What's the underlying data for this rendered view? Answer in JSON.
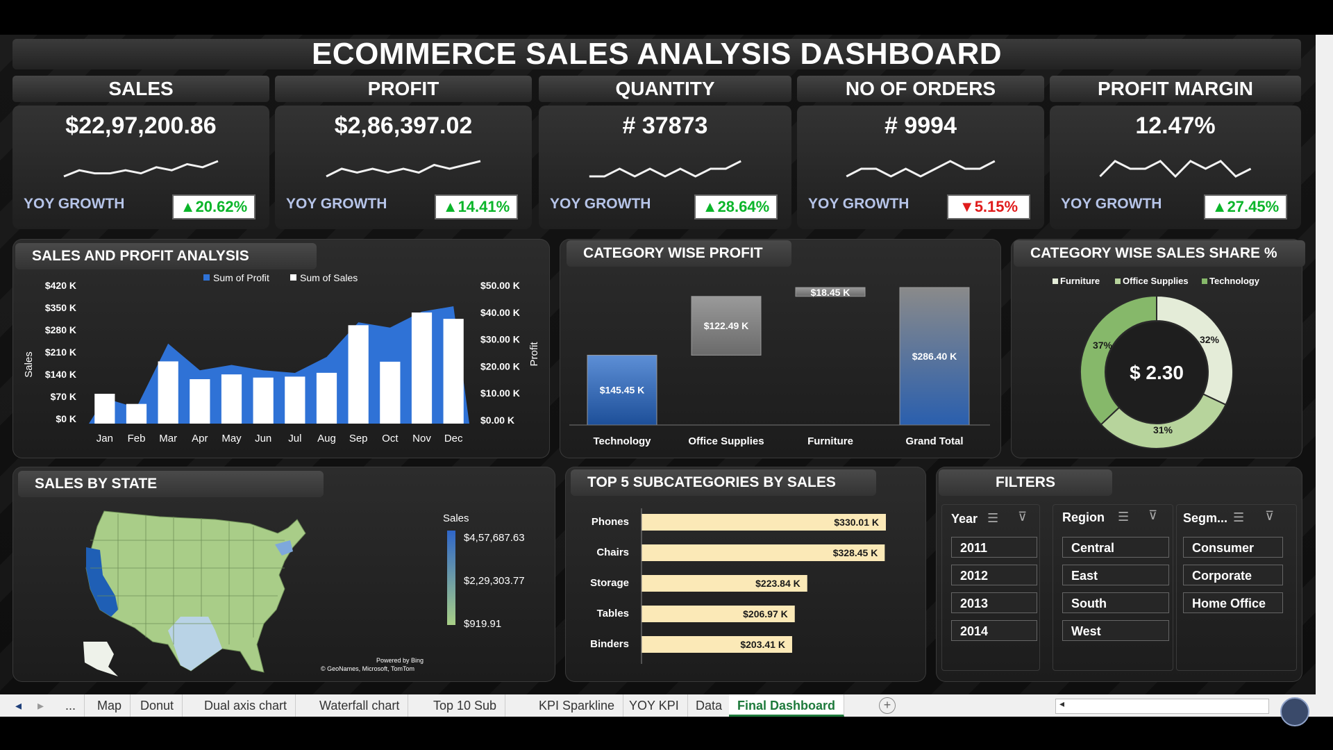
{
  "dashboard_title": "ECOMMERCE SALES ANALYSIS DASHBOARD",
  "kpis": [
    {
      "label": "SALES",
      "value": "$22,97,200.86",
      "yoy_label": "YOY GROWTH",
      "growth": "▲20.62%",
      "trend": "up",
      "spark": [
        3,
        5,
        4,
        4,
        5,
        4,
        6,
        5,
        7,
        6,
        8
      ]
    },
    {
      "label": "PROFIT",
      "value": "$2,86,397.02",
      "yoy_label": "YOY GROWTH",
      "growth": "▲14.41%",
      "trend": "up",
      "spark": [
        4,
        6,
        5,
        6,
        5,
        6,
        5,
        7,
        6,
        7,
        8
      ]
    },
    {
      "label": "QUANTITY",
      "value": "# 37873",
      "yoy_label": "YOY GROWTH",
      "growth": "▲28.64%",
      "trend": "up",
      "spark": [
        5,
        5,
        6,
        5,
        6,
        5,
        6,
        5,
        6,
        6,
        7
      ]
    },
    {
      "label": "NO OF ORDERS",
      "value": "# 9994",
      "yoy_label": "YOY GROWTH",
      "growth": "▼5.15%",
      "trend": "down",
      "spark": [
        5,
        6,
        6,
        5,
        6,
        5,
        6,
        7,
        6,
        6,
        7
      ]
    },
    {
      "label": "PROFIT MARGIN",
      "value": "12.47%",
      "yoy_label": "YOY GROWTH",
      "growth": "▲27.45%",
      "trend": "up",
      "spark": [
        5,
        7,
        6,
        6,
        7,
        5,
        7,
        6,
        7,
        5,
        6
      ]
    }
  ],
  "sales_profit": {
    "title": "SALES AND PROFIT ANALYSIS",
    "legend": [
      "Sum of Profit",
      "Sum of Sales"
    ],
    "ylabel_left": "Sales",
    "ylabel_right": "Profit",
    "left_ticks": [
      "$420 K",
      "$350 K",
      "$280 K",
      "$210 K",
      "$140 K",
      "$70 K",
      "$0 K"
    ],
    "right_ticks": [
      "$50.00 K",
      "$40.00 K",
      "$30.00 K",
      "$20.00 K",
      "$10.00 K",
      "$0.00 K"
    ],
    "colors": {
      "profit": "#2f72d6",
      "sales": "#ffffff"
    }
  },
  "category_profit": {
    "title": "CATEGORY WISE PROFIT",
    "labels": [
      "$145.45 K",
      "$122.49 K",
      "$18.45 K",
      "$286.40 K"
    ]
  },
  "category_share": {
    "title": "CATEGORY WISE SALES SHARE %",
    "legend": [
      "Furniture",
      "Office Supplies",
      "Technology"
    ],
    "center_label": "$ 2.30",
    "slice_labels": [
      "32%",
      "31%",
      "37%"
    ],
    "colors": [
      "#e4ecd8",
      "#b7d49c",
      "#86b86a"
    ]
  },
  "sales_by_state": {
    "title": "SALES BY STATE",
    "legend_title": "Sales",
    "legend_values": [
      "$4,57,687.63",
      "$2,29,303.77",
      "$919.91"
    ],
    "credit_1": "Powered by Bing",
    "credit_2": "© GeoNames, Microsoft, TomTom"
  },
  "top5": {
    "title": "TOP 5 SUBCATEGORIES BY SALES",
    "bar_color": "#fbe9b7"
  },
  "filters": {
    "title": "FILTERS",
    "year_label": "Year",
    "years": [
      "2011",
      "2012",
      "2013",
      "2014"
    ],
    "region_label": "Region",
    "regions": [
      "Central",
      "East",
      "South",
      "West"
    ],
    "segment_label": "Segm...",
    "segments": [
      "Consumer",
      "Corporate",
      "Home Office"
    ]
  },
  "sheet_tabs": [
    "...",
    "Map",
    "Donut",
    "Dual axis chart",
    "Waterfall chart",
    "Top 10 Sub",
    "KPI Sparkline",
    "YOY KPI",
    "Data",
    "Final Dashboard"
  ],
  "active_tab": "Final Dashboard",
  "chart_data": [
    {
      "type": "bar",
      "title": "SALES AND PROFIT ANALYSIS",
      "categories": [
        "Jan",
        "Feb",
        "Mar",
        "Apr",
        "May",
        "Jun",
        "Jul",
        "Aug",
        "Sep",
        "Oct",
        "Nov",
        "Dec"
      ],
      "series": [
        {
          "name": "Sum of Sales",
          "axis": "left",
          "values": [
            94,
            62,
            196,
            140,
            155,
            145,
            148,
            160,
            310,
            195,
            350,
            330
          ]
        },
        {
          "name": "Sum of Profit",
          "axis": "right",
          "values": [
            9.5,
            6,
            30,
            20,
            22,
            20,
            19,
            25,
            38,
            36,
            42,
            44
          ]
        }
      ],
      "ylim_left": [
        0,
        420
      ],
      "ylim_right": [
        0,
        50
      ]
    },
    {
      "type": "bar",
      "title": "CATEGORY WISE PROFIT",
      "categories": [
        "Technology",
        "Office Supplies",
        "Furniture",
        "Grand Total"
      ],
      "values": [
        145.45,
        122.49,
        18.45,
        286.4
      ]
    },
    {
      "type": "pie",
      "title": "CATEGORY WISE SALES SHARE %",
      "categories": [
        "Furniture",
        "Office Supplies",
        "Technology"
      ],
      "values": [
        32,
        31,
        37
      ]
    },
    {
      "type": "bar",
      "title": "TOP 5 SUBCATEGORIES BY SALES",
      "categories": [
        "Phones",
        "Chairs",
        "Storage",
        "Tables",
        "Binders"
      ],
      "values": [
        330.01,
        328.45,
        223.84,
        206.97,
        203.41
      ],
      "labels": [
        "$330.01 K",
        "$328.45 K",
        "$223.84 K",
        "$206.97 K",
        "$203.41 K"
      ]
    }
  ]
}
